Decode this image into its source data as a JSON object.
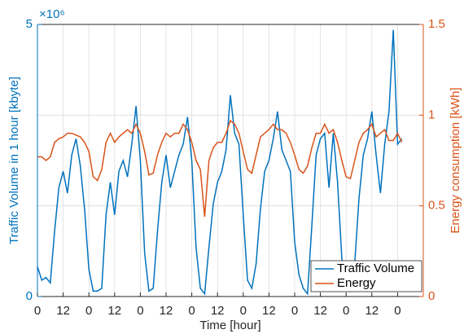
{
  "chart_data": {
    "type": "line",
    "xlabel": "Time [hour]",
    "ylabel": "Traffic Volume in 1 hour [kbyte]",
    "y2label": "Energy consumption [kWh]",
    "y_exponent": "×10⁶",
    "x": [
      0,
      2,
      4,
      6,
      8,
      10,
      12,
      14,
      16,
      18,
      20,
      22,
      24,
      26,
      28,
      30,
      32,
      34,
      36,
      38,
      40,
      42,
      44,
      46,
      48,
      50,
      52,
      54,
      56,
      58,
      60,
      62,
      64,
      66,
      68,
      70,
      72,
      74,
      76,
      78,
      80,
      82,
      84,
      86,
      88,
      90,
      92,
      94,
      96,
      98,
      100,
      102,
      104,
      106,
      108,
      110,
      112,
      114,
      116,
      118,
      120,
      122,
      124,
      126,
      128,
      130,
      132,
      134,
      136,
      138,
      140,
      142,
      144,
      146,
      148,
      150,
      152,
      154,
      156,
      158,
      160,
      162,
      164,
      166,
      168,
      170
    ],
    "series": [
      {
        "name": "Traffic Volume",
        "color": "#0072BD",
        "axis": "y",
        "values": [
          0.55,
          0.3,
          0.35,
          0.25,
          1.2,
          2.0,
          2.3,
          1.9,
          2.6,
          2.9,
          2.4,
          1.6,
          0.5,
          0.1,
          0.1,
          0.15,
          1.5,
          2.1,
          1.5,
          2.3,
          2.5,
          2.2,
          2.8,
          3.5,
          2.5,
          0.8,
          0.1,
          0.15,
          1.2,
          2.1,
          2.6,
          2.0,
          2.3,
          2.6,
          2.8,
          3.3,
          2.5,
          0.9,
          0.15,
          0.05,
          0.9,
          1.7,
          2.1,
          2.3,
          2.7,
          3.7,
          3.0,
          2.8,
          1.5,
          0.3,
          0.15,
          0.6,
          1.6,
          2.3,
          2.5,
          2.9,
          3.4,
          2.7,
          2.5,
          2.3,
          1.0,
          0.4,
          0.15,
          0.05,
          1.3,
          2.6,
          2.9,
          3.0,
          2.0,
          3.0,
          2.1,
          0.7,
          0.2,
          0.1,
          0.6,
          1.8,
          2.6,
          2.9,
          3.4,
          2.6,
          1.9,
          2.8,
          3.4,
          4.9,
          2.8,
          2.9
        ]
      },
      {
        "name": "Energy",
        "color": "#D95319",
        "axis": "y2",
        "values": [
          0.77,
          0.77,
          0.75,
          0.77,
          0.85,
          0.87,
          0.88,
          0.9,
          0.9,
          0.89,
          0.88,
          0.85,
          0.8,
          0.66,
          0.64,
          0.7,
          0.85,
          0.9,
          0.85,
          0.88,
          0.9,
          0.92,
          0.9,
          0.95,
          0.9,
          0.8,
          0.67,
          0.68,
          0.78,
          0.85,
          0.9,
          0.88,
          0.9,
          0.9,
          0.95,
          0.92,
          0.85,
          0.75,
          0.7,
          0.44,
          0.75,
          0.82,
          0.85,
          0.85,
          0.9,
          0.97,
          0.95,
          0.9,
          0.8,
          0.7,
          0.68,
          0.78,
          0.88,
          0.9,
          0.92,
          0.95,
          0.92,
          0.92,
          0.9,
          0.85,
          0.78,
          0.7,
          0.68,
          0.72,
          0.82,
          0.9,
          0.9,
          0.95,
          0.9,
          0.92,
          0.85,
          0.75,
          0.66,
          0.65,
          0.75,
          0.85,
          0.9,
          0.92,
          0.95,
          0.88,
          0.9,
          0.92,
          0.86,
          0.86,
          0.9,
          0.85
        ]
      }
    ],
    "xlim": [
      0,
      180
    ],
    "xticks": [
      {
        "value": 0,
        "label": "0"
      },
      {
        "value": 12,
        "label": "12"
      },
      {
        "value": 24,
        "label": "0"
      },
      {
        "value": 36,
        "label": "12"
      },
      {
        "value": 48,
        "label": "0"
      },
      {
        "value": 60,
        "label": "12"
      },
      {
        "value": 72,
        "label": "0"
      },
      {
        "value": 84,
        "label": "12"
      },
      {
        "value": 96,
        "label": "0"
      },
      {
        "value": 108,
        "label": "12"
      },
      {
        "value": 120,
        "label": "0"
      },
      {
        "value": 132,
        "label": "12"
      },
      {
        "value": 144,
        "label": "0"
      },
      {
        "value": 156,
        "label": "12"
      },
      {
        "value": 168,
        "label": "0"
      }
    ],
    "ylim": [
      0,
      5
    ],
    "yticks": [
      0,
      5
    ],
    "y2lim": [
      0,
      1.5
    ],
    "y2ticks": [
      0,
      0.5,
      1,
      1.5
    ],
    "grid": true,
    "legend": "lower right"
  }
}
